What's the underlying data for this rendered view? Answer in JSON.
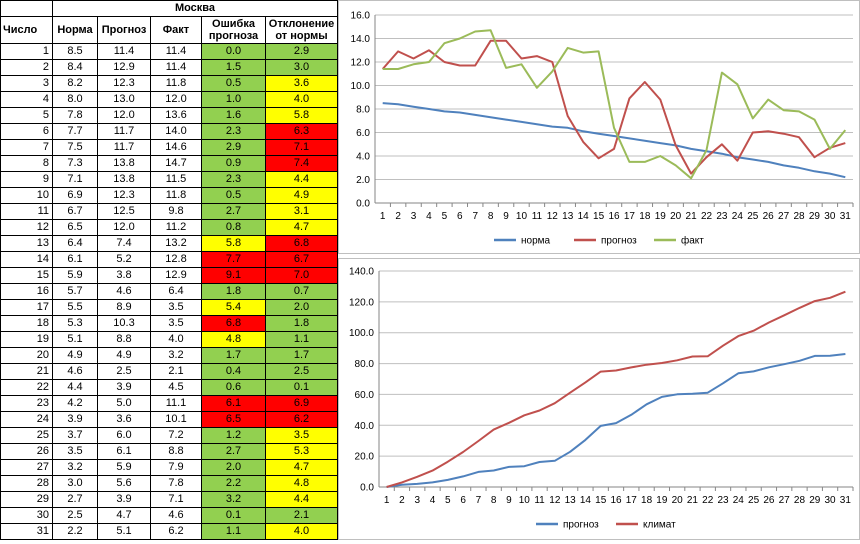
{
  "table": {
    "city": "Москва",
    "headers": [
      "Число",
      "Норма",
      "Прогноз",
      "Факт",
      "Ошибка прогноза",
      "Отклонение от нормы"
    ],
    "rows": [
      {
        "day": "1",
        "norm": "8.5",
        "forecast": "11.4",
        "fact": "11.4",
        "error": "0.0",
        "error_color": "green",
        "dev": "2.9",
        "dev_color": "green"
      },
      {
        "day": "2",
        "norm": "8.4",
        "forecast": "12.9",
        "fact": "11.4",
        "error": "1.5",
        "error_color": "green",
        "dev": "3.0",
        "dev_color": "green"
      },
      {
        "day": "3",
        "norm": "8.2",
        "forecast": "12.3",
        "fact": "11.8",
        "error": "0.5",
        "error_color": "green",
        "dev": "3.6",
        "dev_color": "yellow"
      },
      {
        "day": "4",
        "norm": "8.0",
        "forecast": "13.0",
        "fact": "12.0",
        "error": "1.0",
        "error_color": "green",
        "dev": "4.0",
        "dev_color": "yellow"
      },
      {
        "day": "5",
        "norm": "7.8",
        "forecast": "12.0",
        "fact": "13.6",
        "error": "1.6",
        "error_color": "green",
        "dev": "5.8",
        "dev_color": "yellow"
      },
      {
        "day": "6",
        "norm": "7.7",
        "forecast": "11.7",
        "fact": "14.0",
        "error": "2.3",
        "error_color": "green",
        "dev": "6.3",
        "dev_color": "red"
      },
      {
        "day": "7",
        "norm": "7.5",
        "forecast": "11.7",
        "fact": "14.6",
        "error": "2.9",
        "error_color": "green",
        "dev": "7.1",
        "dev_color": "red"
      },
      {
        "day": "8",
        "norm": "7.3",
        "forecast": "13.8",
        "fact": "14.7",
        "error": "0.9",
        "error_color": "green",
        "dev": "7.4",
        "dev_color": "red"
      },
      {
        "day": "9",
        "norm": "7.1",
        "forecast": "13.8",
        "fact": "11.5",
        "error": "2.3",
        "error_color": "green",
        "dev": "4.4",
        "dev_color": "yellow"
      },
      {
        "day": "10",
        "norm": "6.9",
        "forecast": "12.3",
        "fact": "11.8",
        "error": "0.5",
        "error_color": "green",
        "dev": "4.9",
        "dev_color": "yellow"
      },
      {
        "day": "11",
        "norm": "6.7",
        "forecast": "12.5",
        "fact": "9.8",
        "error": "2.7",
        "error_color": "green",
        "dev": "3.1",
        "dev_color": "yellow"
      },
      {
        "day": "12",
        "norm": "6.5",
        "forecast": "12.0",
        "fact": "11.2",
        "error": "0.8",
        "error_color": "green",
        "dev": "4.7",
        "dev_color": "yellow"
      },
      {
        "day": "13",
        "norm": "6.4",
        "forecast": "7.4",
        "fact": "13.2",
        "error": "5.8",
        "error_color": "yellow",
        "dev": "6.8",
        "dev_color": "red"
      },
      {
        "day": "14",
        "norm": "6.1",
        "forecast": "5.2",
        "fact": "12.8",
        "error": "7.7",
        "error_color": "red",
        "dev": "6.7",
        "dev_color": "red"
      },
      {
        "day": "15",
        "norm": "5.9",
        "forecast": "3.8",
        "fact": "12.9",
        "error": "9.1",
        "error_color": "red",
        "dev": "7.0",
        "dev_color": "red"
      },
      {
        "day": "16",
        "norm": "5.7",
        "forecast": "4.6",
        "fact": "6.4",
        "error": "1.8",
        "error_color": "green",
        "dev": "0.7",
        "dev_color": "green"
      },
      {
        "day": "17",
        "norm": "5.5",
        "forecast": "8.9",
        "fact": "3.5",
        "error": "5.4",
        "error_color": "yellow",
        "dev": "2.0",
        "dev_color": "green"
      },
      {
        "day": "18",
        "norm": "5.3",
        "forecast": "10.3",
        "fact": "3.5",
        "error": "6.8",
        "error_color": "red",
        "dev": "1.8",
        "dev_color": "green"
      },
      {
        "day": "19",
        "norm": "5.1",
        "forecast": "8.8",
        "fact": "4.0",
        "error": "4.8",
        "error_color": "yellow",
        "dev": "1.1",
        "dev_color": "green"
      },
      {
        "day": "20",
        "norm": "4.9",
        "forecast": "4.9",
        "fact": "3.2",
        "error": "1.7",
        "error_color": "green",
        "dev": "1.7",
        "dev_color": "green"
      },
      {
        "day": "21",
        "norm": "4.6",
        "forecast": "2.5",
        "fact": "2.1",
        "error": "0.4",
        "error_color": "green",
        "dev": "2.5",
        "dev_color": "green"
      },
      {
        "day": "22",
        "norm": "4.4",
        "forecast": "3.9",
        "fact": "4.5",
        "error": "0.6",
        "error_color": "green",
        "dev": "0.1",
        "dev_color": "green"
      },
      {
        "day": "23",
        "norm": "4.2",
        "forecast": "5.0",
        "fact": "11.1",
        "error": "6.1",
        "error_color": "red",
        "dev": "6.9",
        "dev_color": "red"
      },
      {
        "day": "24",
        "norm": "3.9",
        "forecast": "3.6",
        "fact": "10.1",
        "error": "6.5",
        "error_color": "red",
        "dev": "6.2",
        "dev_color": "red"
      },
      {
        "day": "25",
        "norm": "3.7",
        "forecast": "6.0",
        "fact": "7.2",
        "error": "1.2",
        "error_color": "green",
        "dev": "3.5",
        "dev_color": "yellow"
      },
      {
        "day": "26",
        "norm": "3.5",
        "forecast": "6.1",
        "fact": "8.8",
        "error": "2.7",
        "error_color": "green",
        "dev": "5.3",
        "dev_color": "yellow"
      },
      {
        "day": "27",
        "norm": "3.2",
        "forecast": "5.9",
        "fact": "7.9",
        "error": "2.0",
        "error_color": "green",
        "dev": "4.7",
        "dev_color": "yellow"
      },
      {
        "day": "28",
        "norm": "3.0",
        "forecast": "5.6",
        "fact": "7.8",
        "error": "2.2",
        "error_color": "green",
        "dev": "4.8",
        "dev_color": "yellow"
      },
      {
        "day": "29",
        "norm": "2.7",
        "forecast": "3.9",
        "fact": "7.1",
        "error": "3.2",
        "error_color": "green",
        "dev": "4.4",
        "dev_color": "yellow"
      },
      {
        "day": "30",
        "norm": "2.5",
        "forecast": "4.7",
        "fact": "4.6",
        "error": "0.1",
        "error_color": "green",
        "dev": "2.1",
        "dev_color": "green"
      },
      {
        "day": "31",
        "norm": "2.2",
        "forecast": "5.1",
        "fact": "6.2",
        "error": "1.1",
        "error_color": "green",
        "dev": "4.0",
        "dev_color": "yellow"
      }
    ]
  },
  "chart_data": [
    {
      "type": "line",
      "title": "",
      "xlabel": "",
      "ylabel": "",
      "x": [
        1,
        2,
        3,
        4,
        5,
        6,
        7,
        8,
        9,
        10,
        11,
        12,
        13,
        14,
        15,
        16,
        17,
        18,
        19,
        20,
        21,
        22,
        23,
        24,
        25,
        26,
        27,
        28,
        29,
        30,
        31
      ],
      "ylim": [
        0,
        16
      ],
      "yticks": [
        "0.0",
        "2.0",
        "4.0",
        "6.0",
        "8.0",
        "10.0",
        "12.0",
        "14.0",
        "16.0"
      ],
      "ytick_values": [
        0,
        2,
        4,
        6,
        8,
        10,
        12,
        14,
        16
      ],
      "grid": true,
      "legend": "bottom",
      "series": [
        {
          "name": "норма",
          "color": "#4f81bd",
          "values": [
            8.5,
            8.4,
            8.2,
            8.0,
            7.8,
            7.7,
            7.5,
            7.3,
            7.1,
            6.9,
            6.7,
            6.5,
            6.4,
            6.1,
            5.9,
            5.7,
            5.5,
            5.3,
            5.1,
            4.9,
            4.6,
            4.4,
            4.2,
            3.9,
            3.7,
            3.5,
            3.2,
            3.0,
            2.7,
            2.5,
            2.2
          ]
        },
        {
          "name": "прогноз",
          "color": "#c0504d",
          "values": [
            11.4,
            12.9,
            12.3,
            13.0,
            12.0,
            11.7,
            11.7,
            13.8,
            13.8,
            12.3,
            12.5,
            12.0,
            7.4,
            5.2,
            3.8,
            4.6,
            8.9,
            10.3,
            8.8,
            4.9,
            2.5,
            3.9,
            5.0,
            3.6,
            6.0,
            6.1,
            5.9,
            5.6,
            3.9,
            4.7,
            5.1
          ]
        },
        {
          "name": "факт",
          "color": "#9bbb59",
          "values": [
            11.4,
            11.4,
            11.8,
            12.0,
            13.6,
            14.0,
            14.6,
            14.7,
            11.5,
            11.8,
            9.8,
            11.2,
            13.2,
            12.8,
            12.9,
            6.4,
            3.5,
            3.5,
            4.0,
            3.2,
            2.1,
            4.5,
            11.1,
            10.1,
            7.2,
            8.8,
            7.9,
            7.8,
            7.1,
            4.6,
            6.2
          ]
        }
      ]
    },
    {
      "type": "line",
      "title": "",
      "xlabel": "",
      "ylabel": "",
      "x": [
        1,
        2,
        3,
        4,
        5,
        6,
        7,
        8,
        9,
        10,
        11,
        12,
        13,
        14,
        15,
        16,
        17,
        18,
        19,
        20,
        21,
        22,
        23,
        24,
        25,
        26,
        27,
        28,
        29,
        30,
        31
      ],
      "ylim": [
        0,
        140
      ],
      "yticks": [
        "0.0",
        "20.0",
        "40.0",
        "60.0",
        "80.0",
        "100.0",
        "120.0",
        "140.0"
      ],
      "ytick_values": [
        0,
        20,
        40,
        60,
        80,
        100,
        120,
        140
      ],
      "grid": true,
      "legend": "bottom",
      "series": [
        {
          "name": "прогноз",
          "color": "#4f81bd",
          "values": [
            0.0,
            1.5,
            2.0,
            3.0,
            4.6,
            6.9,
            9.8,
            10.7,
            13.0,
            13.5,
            16.2,
            17.0,
            22.8,
            30.5,
            39.6,
            41.4,
            46.8,
            53.6,
            58.4,
            60.1,
            60.5,
            61.1,
            67.2,
            73.7,
            74.9,
            77.6,
            79.6,
            81.8,
            85.0,
            85.1,
            86.2
          ]
        },
        {
          "name": "климат",
          "color": "#c0504d",
          "values": [
            0.0,
            3.0,
            6.6,
            10.6,
            16.4,
            22.7,
            29.8,
            37.2,
            41.6,
            46.5,
            49.6,
            54.3,
            61.1,
            67.8,
            74.8,
            75.5,
            77.5,
            79.3,
            80.4,
            82.1,
            84.6,
            84.7,
            91.6,
            97.8,
            101.3,
            106.6,
            111.3,
            116.1,
            120.5,
            122.6,
            126.6
          ]
        }
      ]
    }
  ]
}
